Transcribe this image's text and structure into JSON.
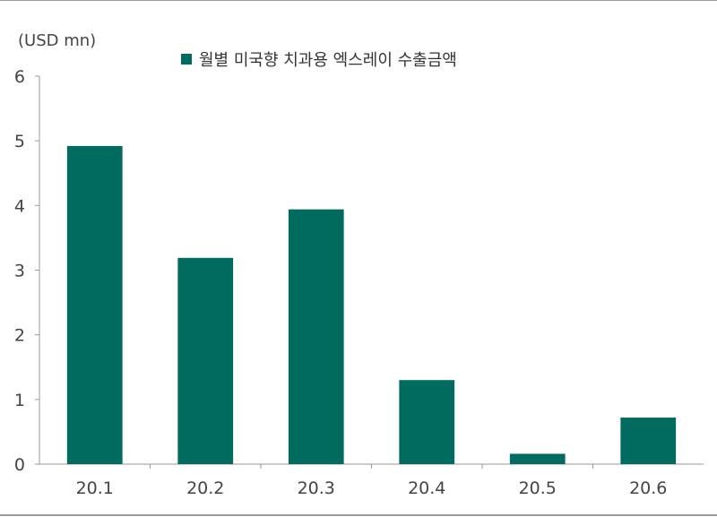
{
  "chart_data": {
    "type": "bar",
    "title": "",
    "ylabel": "(USD mn)",
    "xlabel": "",
    "categories": [
      "20.1",
      "20.2",
      "20.3",
      "20.4",
      "20.5",
      "20.6"
    ],
    "series": [
      {
        "name": "월별 미국향 치과용 엑스레이 수출금액",
        "values": [
          4.92,
          3.19,
          3.94,
          1.3,
          0.16,
          0.72
        ]
      }
    ],
    "ylim": [
      0,
      6
    ],
    "yticks": [
      "0",
      "1",
      "2",
      "3",
      "4",
      "5",
      "6"
    ],
    "grid": false,
    "legend": "top",
    "bar_color": "#006b5e",
    "axis_color": "#9a9a9a"
  }
}
